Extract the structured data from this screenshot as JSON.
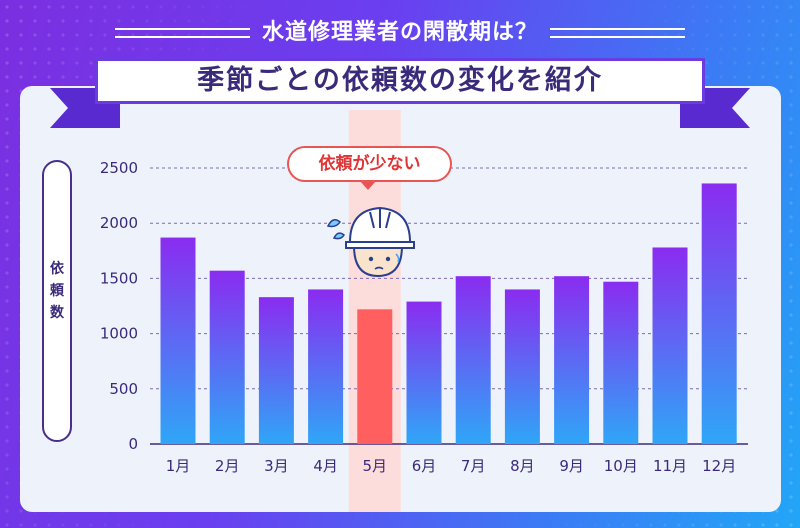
{
  "page": {
    "top_title": "水道修理業者の閑散期は？",
    "ribbon_title": "季節ごとの依頼数の変化を紹介",
    "callout": "依頼が少ない"
  },
  "colors": {
    "bar_gradient_top": "#8a2cf0",
    "bar_gradient_bottom": "#2fa6f7",
    "highlight_bar": "#ff5f5f",
    "highlight_band": "#ffd8d6",
    "text": "#3b2a7a",
    "callout_red": "#e03535"
  },
  "chart_data": {
    "type": "bar",
    "title": "季節ごとの依頼数の変化を紹介",
    "ylabel": "依頼数",
    "ylim": [
      0,
      2500
    ],
    "yticks": [
      0,
      500,
      1000,
      1500,
      2000,
      2500
    ],
    "grid": true,
    "categories": [
      "1月",
      "2月",
      "3月",
      "4月",
      "5月",
      "6月",
      "7月",
      "8月",
      "9月",
      "10月",
      "11月",
      "12月"
    ],
    "values": [
      1870,
      1570,
      1330,
      1400,
      1220,
      1290,
      1520,
      1400,
      1520,
      1470,
      1780,
      2360
    ],
    "highlight_category": "5月",
    "annotation": "依頼が少ない"
  }
}
